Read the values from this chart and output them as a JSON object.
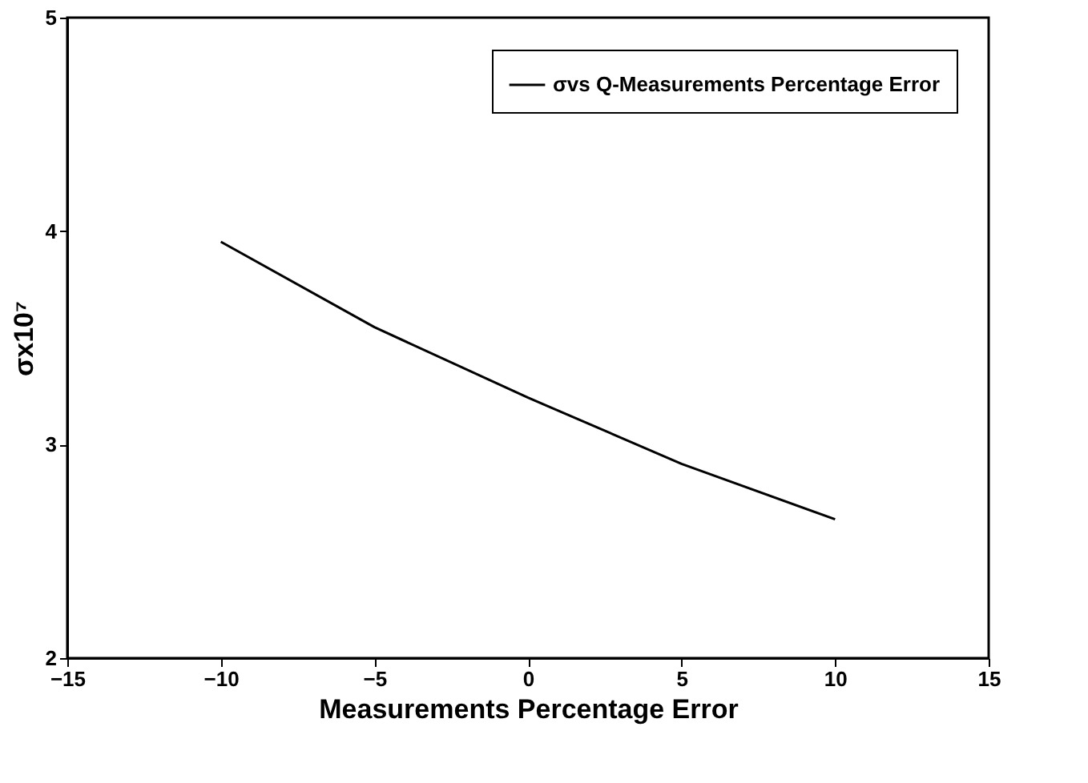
{
  "chart_data": {
    "type": "line",
    "xlabel": "Measurements Percentage Error",
    "ylabel": "σx10⁷",
    "x": [
      -10,
      -5,
      0,
      5,
      10
    ],
    "series": [
      {
        "name": "σvs Q-Measurements Percentage Error",
        "color": "#000000",
        "values": [
          3.95,
          3.55,
          3.22,
          2.91,
          2.65
        ]
      }
    ],
    "xlim": [
      -15,
      15
    ],
    "xticks": [
      -15,
      -10,
      -5,
      0,
      5,
      10,
      15
    ],
    "ylim": [
      2,
      5
    ],
    "yticks": [
      2,
      3,
      4,
      5
    ],
    "grid": false,
    "legend": "top right",
    "marker": "none",
    "line_style": "solid"
  }
}
